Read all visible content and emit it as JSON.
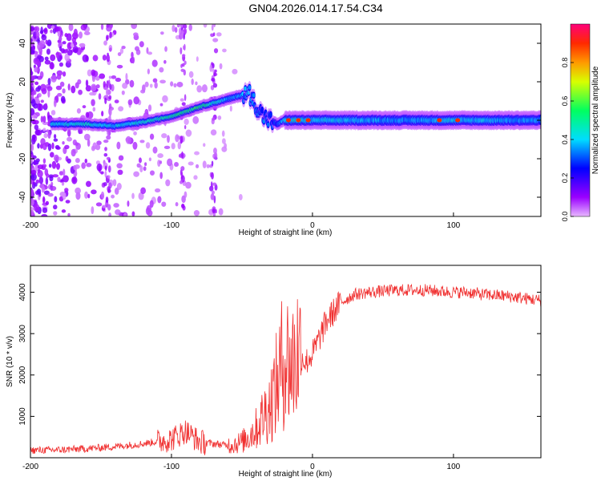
{
  "title": "GN04.2026.014.17.54.C34",
  "colors": {
    "snr_line": "#f03030",
    "axis": "#000000"
  },
  "chart_data": [
    {
      "type": "heatmap",
      "xlabel": "Height of straight line (km)",
      "ylabel": "Frequency (Hz)",
      "xlim": [
        -200,
        162
      ],
      "ylim": [
        -50,
        50
      ],
      "xticks": [
        -200,
        -100,
        0,
        100
      ],
      "yticks": [
        -40,
        -20,
        0,
        20,
        40
      ],
      "colorbar": {
        "label": "Normalized spectral amplitude",
        "range": [
          0,
          1
        ],
        "ticks": [
          "0.0",
          "0.2",
          "0.4",
          "0.6",
          "0.8"
        ],
        "tick_values": [
          0.0,
          0.2,
          0.4,
          0.6,
          0.8
        ]
      },
      "ridge": {
        "x": [
          -185,
          -160,
          -140,
          -120,
          -100,
          -80,
          -60,
          -45,
          -35,
          -25,
          -20,
          -10,
          0,
          20,
          60,
          100,
          162
        ],
        "freq": [
          -2,
          -2,
          -3,
          -1,
          2,
          7,
          11,
          14,
          2,
          -2,
          0,
          0,
          0,
          0,
          0,
          0,
          0
        ],
        "amplitude": [
          0.55,
          0.6,
          0.55,
          0.6,
          0.65,
          0.7,
          0.5,
          0.5,
          0.45,
          0.4,
          0.55,
          0.6,
          0.55,
          0.55,
          0.5,
          0.55,
          0.5
        ]
      },
      "noise_columns_x": [
        -145,
        -92,
        -70
      ]
    },
    {
      "type": "line",
      "xlabel": "Height of straight line (km)",
      "ylabel": "SNR (10 * v/v)",
      "xlim": [
        -200,
        162
      ],
      "ylim": [
        0,
        4650
      ],
      "xticks": [
        -200,
        -100,
        0,
        100
      ],
      "yticks": [
        1000,
        2000,
        3000,
        4000
      ],
      "series": [
        {
          "name": "SNR",
          "x": [
            -200,
            -180,
            -160,
            -140,
            -120,
            -100,
            -90,
            -80,
            -60,
            -50,
            -40,
            -30,
            -25,
            -20,
            -15,
            -10,
            -5,
            0,
            10,
            20,
            30,
            40,
            60,
            80,
            100,
            110,
            120,
            140,
            162
          ],
          "y": [
            180,
            190,
            220,
            270,
            340,
            450,
            650,
            380,
            300,
            380,
            700,
            1300,
            1800,
            2500,
            2200,
            2600,
            2300,
            2500,
            3300,
            3750,
            3950,
            4000,
            4050,
            4050,
            4000,
            4000,
            3950,
            3900,
            3800
          ]
        }
      ]
    }
  ]
}
